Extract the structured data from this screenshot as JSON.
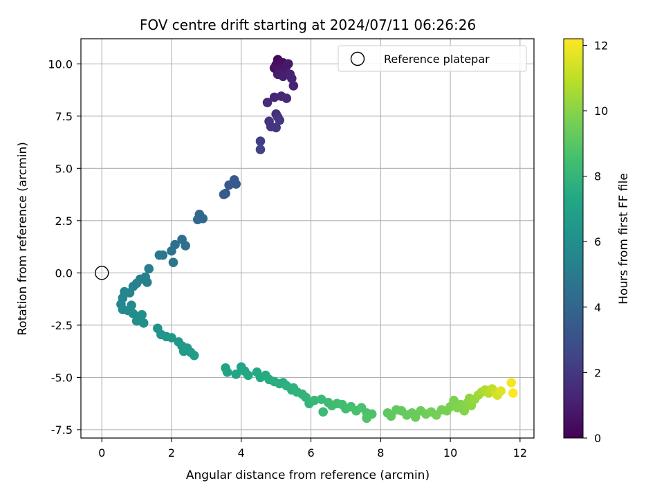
{
  "chart_data": {
    "type": "scatter",
    "title": "FOV centre drift starting at 2024/07/11 06:26:26",
    "xlabel": "Angular distance from reference (arcmin)",
    "ylabel": "Rotation from reference (arcmin)",
    "xlim": [
      -0.6,
      12.4
    ],
    "ylim": [
      -7.9,
      11.2
    ],
    "xticks": [
      0,
      2,
      4,
      6,
      8,
      10,
      12
    ],
    "yticks": [
      -7.5,
      -5.0,
      -2.5,
      0.0,
      2.5,
      5.0,
      7.5,
      10.0
    ],
    "grid": true,
    "legend": {
      "position": "top-right",
      "entries": [
        "Reference platepar"
      ]
    },
    "reference_point": {
      "name": "Reference platepar",
      "x": 0,
      "y": 0
    },
    "colorbar": {
      "label": "Hours from first FF file",
      "range": [
        0,
        12.2
      ],
      "ticks": [
        0,
        2,
        4,
        6,
        8,
        10,
        12
      ],
      "colormap": "viridis"
    },
    "series": [
      {
        "points": [
          [
            5.05,
            10.2,
            0.1
          ],
          [
            5.1,
            10.1,
            0.3
          ],
          [
            5.0,
            9.95,
            0.4
          ],
          [
            5.2,
            10.05,
            0.5
          ],
          [
            4.95,
            9.8,
            0.6
          ],
          [
            5.1,
            9.75,
            0.7
          ],
          [
            5.3,
            9.9,
            0.8
          ],
          [
            5.35,
            10.0,
            0.85
          ],
          [
            5.25,
            9.6,
            0.9
          ],
          [
            5.05,
            9.5,
            1.0
          ],
          [
            5.2,
            9.4,
            1.05
          ],
          [
            5.4,
            9.5,
            1.1
          ],
          [
            5.45,
            9.3,
            1.15
          ],
          [
            5.5,
            8.95,
            1.2
          ],
          [
            4.95,
            8.4,
            1.3
          ],
          [
            5.15,
            8.45,
            1.35
          ],
          [
            5.3,
            8.35,
            1.4
          ],
          [
            4.75,
            8.15,
            1.5
          ],
          [
            5.0,
            7.6,
            1.6
          ],
          [
            5.05,
            7.45,
            1.7
          ],
          [
            4.8,
            7.25,
            1.8
          ],
          [
            4.85,
            7.0,
            1.85
          ],
          [
            5.0,
            6.95,
            1.9
          ],
          [
            5.1,
            7.3,
            1.95
          ],
          [
            4.55,
            6.3,
            2.2
          ],
          [
            4.55,
            5.9,
            2.4
          ],
          [
            3.55,
            3.8,
            3.3
          ],
          [
            3.65,
            4.2,
            3.35
          ],
          [
            3.8,
            4.45,
            3.4
          ],
          [
            3.85,
            4.25,
            3.45
          ],
          [
            3.5,
            3.75,
            3.5
          ],
          [
            2.8,
            2.8,
            4.0
          ],
          [
            2.9,
            2.6,
            4.1
          ],
          [
            2.75,
            2.55,
            4.15
          ],
          [
            2.3,
            1.6,
            4.4
          ],
          [
            2.4,
            1.3,
            4.5
          ],
          [
            2.1,
            1.35,
            4.5
          ],
          [
            2.0,
            1.05,
            4.6
          ],
          [
            2.05,
            0.5,
            4.8
          ],
          [
            1.75,
            0.85,
            4.9
          ],
          [
            1.65,
            0.85,
            4.95
          ],
          [
            1.35,
            0.2,
            5.1
          ],
          [
            1.25,
            -0.2,
            5.2
          ],
          [
            1.3,
            -0.45,
            5.25
          ],
          [
            1.1,
            -0.3,
            5.3
          ],
          [
            1.0,
            -0.5,
            5.35
          ],
          [
            0.9,
            -0.65,
            5.4
          ],
          [
            0.8,
            -0.95,
            5.5
          ],
          [
            0.65,
            -0.9,
            5.55
          ],
          [
            0.6,
            -1.2,
            5.6
          ],
          [
            0.55,
            -1.5,
            5.65
          ],
          [
            0.6,
            -1.75,
            5.7
          ],
          [
            0.75,
            -1.8,
            5.75
          ],
          [
            0.85,
            -1.55,
            5.8
          ],
          [
            0.9,
            -1.95,
            5.85
          ],
          [
            1.05,
            -2.1,
            5.9
          ],
          [
            1.15,
            -2.0,
            5.95
          ],
          [
            1.0,
            -2.3,
            6.0
          ],
          [
            1.2,
            -2.4,
            6.05
          ],
          [
            1.6,
            -2.65,
            6.2
          ],
          [
            1.7,
            -2.95,
            6.3
          ],
          [
            1.85,
            -3.05,
            6.35
          ],
          [
            2.0,
            -3.1,
            6.4
          ],
          [
            2.2,
            -3.3,
            6.5
          ],
          [
            2.3,
            -3.5,
            6.55
          ],
          [
            2.35,
            -3.75,
            6.6
          ],
          [
            2.45,
            -3.6,
            6.65
          ],
          [
            2.55,
            -3.8,
            6.7
          ],
          [
            2.65,
            -3.95,
            6.75
          ],
          [
            3.55,
            -4.55,
            7.0
          ],
          [
            3.6,
            -4.75,
            7.05
          ],
          [
            3.85,
            -4.85,
            7.1
          ],
          [
            4.0,
            -4.5,
            7.15
          ],
          [
            4.1,
            -4.7,
            7.2
          ],
          [
            4.2,
            -4.9,
            7.25
          ],
          [
            4.45,
            -4.75,
            7.35
          ],
          [
            4.55,
            -5.0,
            7.4
          ],
          [
            4.7,
            -4.9,
            7.45
          ],
          [
            4.8,
            -5.1,
            7.5
          ],
          [
            4.95,
            -5.2,
            7.55
          ],
          [
            5.1,
            -5.3,
            7.6
          ],
          [
            5.2,
            -5.25,
            7.65
          ],
          [
            5.3,
            -5.4,
            7.7
          ],
          [
            5.45,
            -5.6,
            7.75
          ],
          [
            5.5,
            -5.5,
            7.8
          ],
          [
            5.6,
            -5.7,
            7.85
          ],
          [
            5.75,
            -5.8,
            7.9
          ],
          [
            5.85,
            -5.95,
            7.95
          ],
          [
            5.95,
            -6.25,
            8.0
          ],
          [
            6.1,
            -6.1,
            8.1
          ],
          [
            6.3,
            -6.05,
            8.2
          ],
          [
            6.35,
            -6.65,
            8.25
          ],
          [
            6.5,
            -6.2,
            8.3
          ],
          [
            6.6,
            -6.35,
            8.35
          ],
          [
            6.75,
            -6.25,
            8.4
          ],
          [
            6.9,
            -6.3,
            8.45
          ],
          [
            7.0,
            -6.5,
            8.5
          ],
          [
            7.15,
            -6.4,
            8.55
          ],
          [
            7.3,
            -6.6,
            8.6
          ],
          [
            7.45,
            -6.45,
            8.65
          ],
          [
            7.6,
            -6.7,
            8.7
          ],
          [
            7.75,
            -6.75,
            8.75
          ],
          [
            7.6,
            -6.95,
            8.8
          ],
          [
            8.2,
            -6.7,
            9.1
          ],
          [
            8.3,
            -6.85,
            9.15
          ],
          [
            8.45,
            -6.55,
            9.2
          ],
          [
            8.6,
            -6.6,
            9.25
          ],
          [
            8.75,
            -6.8,
            9.3
          ],
          [
            8.9,
            -6.7,
            9.35
          ],
          [
            9.0,
            -6.9,
            9.4
          ],
          [
            9.15,
            -6.6,
            9.45
          ],
          [
            9.3,
            -6.75,
            9.5
          ],
          [
            9.45,
            -6.65,
            9.55
          ],
          [
            9.6,
            -6.8,
            9.6
          ],
          [
            9.75,
            -6.55,
            9.65
          ],
          [
            9.9,
            -6.6,
            9.7
          ],
          [
            10.0,
            -6.4,
            9.75
          ],
          [
            10.1,
            -6.1,
            9.8
          ],
          [
            10.2,
            -6.45,
            9.85
          ],
          [
            10.3,
            -6.3,
            9.9
          ],
          [
            10.4,
            -6.6,
            9.95
          ],
          [
            10.5,
            -6.2,
            10.0
          ],
          [
            10.55,
            -6.0,
            10.1
          ],
          [
            10.6,
            -6.35,
            10.15
          ],
          [
            10.7,
            -6.05,
            10.25
          ],
          [
            10.8,
            -5.85,
            10.4
          ],
          [
            10.9,
            -5.7,
            10.55
          ],
          [
            11.0,
            -5.6,
            10.7
          ],
          [
            11.1,
            -5.75,
            10.85
          ],
          [
            11.2,
            -5.55,
            11.0
          ],
          [
            11.3,
            -5.7,
            11.2
          ],
          [
            11.35,
            -5.85,
            11.4
          ],
          [
            11.45,
            -5.65,
            11.6
          ],
          [
            11.75,
            -5.25,
            12.0
          ],
          [
            11.8,
            -5.75,
            12.2
          ]
        ]
      }
    ]
  }
}
